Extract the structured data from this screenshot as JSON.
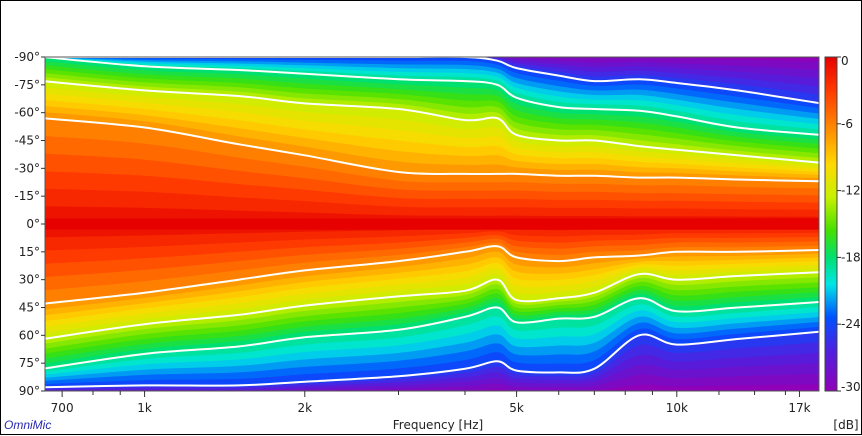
{
  "chart_data": {
    "type": "heatmap",
    "title": "",
    "xlabel": "Frequency [Hz]",
    "ylabel": "",
    "colorbar_label": "[dB]",
    "brand": "OmniMic",
    "x_scale": "log",
    "xlim": [
      650,
      18500
    ],
    "ylim": [
      -90,
      90
    ],
    "clim": [
      -30,
      0
    ],
    "x_tick_labels": [
      {
        "value": 700,
        "label": "700"
      },
      {
        "value": 1000,
        "label": "1k"
      },
      {
        "value": 2000,
        "label": "2k"
      },
      {
        "value": 5000,
        "label": "5k"
      },
      {
        "value": 10000,
        "label": "10k"
      },
      {
        "value": 17000,
        "label": "17k"
      }
    ],
    "x_minor_ticks": [
      800,
      900,
      3000,
      4000,
      6000,
      7000,
      8000,
      9000,
      12000,
      14000,
      16000
    ],
    "y_tick_labels": [
      {
        "value": -90,
        "label": "-90°"
      },
      {
        "value": -75,
        "label": "-75°"
      },
      {
        "value": -60,
        "label": "-60°"
      },
      {
        "value": -45,
        "label": "-45°"
      },
      {
        "value": -30,
        "label": "-30°"
      },
      {
        "value": -15,
        "label": "-15°"
      },
      {
        "value": 0,
        "label": "0°"
      },
      {
        "value": 15,
        "label": "15°"
      },
      {
        "value": 30,
        "label": "30°"
      },
      {
        "value": 45,
        "label": "45°"
      },
      {
        "value": 60,
        "label": "60°"
      },
      {
        "value": 75,
        "label": "75°"
      },
      {
        "value": 90,
        "label": "90°"
      }
    ],
    "colorbar_ticks": [
      {
        "value": 0,
        "label": "0"
      },
      {
        "value": -6,
        "label": "-6"
      },
      {
        "value": -12,
        "label": "-12"
      },
      {
        "value": -18,
        "label": "-18"
      },
      {
        "value": -24,
        "label": "-24"
      },
      {
        "value": -30,
        "label": "-30"
      }
    ],
    "contour_levels_db": [
      -6,
      -12,
      -18,
      -24
    ],
    "frequencies_hz": [
      700,
      1000,
      1500,
      2000,
      3000,
      4000,
      4600,
      5000,
      6000,
      7000,
      8500,
      10000,
      13000,
      17000
    ],
    "iso_contours_deg": [
      {
        "db": -6,
        "negative_side": [
          -57,
          -52,
          -43,
          -37,
          -28,
          -27,
          -27,
          -27,
          -26,
          -26,
          -25,
          -25,
          -24,
          -23
        ],
        "positive_side": [
          43,
          37,
          30,
          25,
          20,
          15,
          12,
          18,
          20,
          18,
          17,
          15,
          15,
          14
        ]
      },
      {
        "db": -12,
        "negative_side": [
          -77,
          -72,
          -69,
          -65,
          -62,
          -56,
          -57,
          -48,
          -45,
          -45,
          -42,
          -40,
          -37,
          -33
        ],
        "positive_side": [
          62,
          54,
          49,
          44,
          39,
          36,
          30,
          41,
          40,
          37,
          27,
          30,
          28,
          26
        ]
      },
      {
        "db": -18,
        "negative_side": [
          -90,
          -85,
          -83,
          -81,
          -78,
          -77,
          -75,
          -68,
          -63,
          -62,
          -61,
          -58,
          -52,
          -48
        ],
        "positive_side": [
          78,
          70,
          66,
          61,
          57,
          50,
          45,
          53,
          51,
          50,
          40,
          47,
          45,
          42
        ]
      },
      {
        "db": -24,
        "negative_side": [
          -90,
          -90,
          -90,
          -90,
          -90,
          -90,
          -88,
          -84,
          -80,
          -77,
          -78,
          -76,
          -72,
          -65
        ],
        "positive_side": [
          88,
          87,
          87,
          85,
          82,
          78,
          74,
          79,
          80,
          78,
          60,
          65,
          62,
          58
        ]
      }
    ]
  }
}
